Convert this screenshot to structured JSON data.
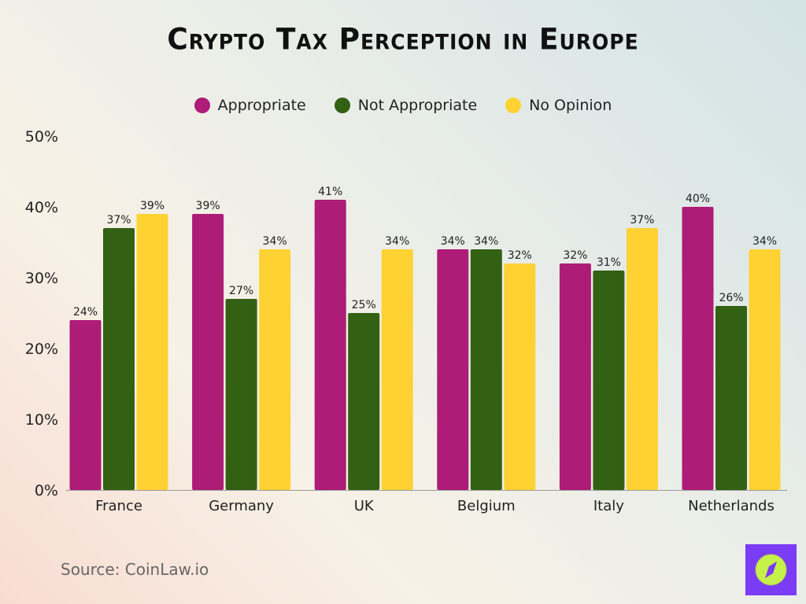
{
  "chart_data": {
    "type": "bar",
    "title": "Crypto Tax Perception in Europe",
    "categories": [
      "France",
      "Germany",
      "UK",
      "Belgium",
      "Italy",
      "Netherlands"
    ],
    "series": [
      {
        "name": "Appropriate",
        "color": "#ad1c77",
        "values": [
          24,
          39,
          41,
          34,
          32,
          40
        ]
      },
      {
        "name": "Not Appropriate",
        "color": "#336114",
        "values": [
          37,
          27,
          25,
          34,
          31,
          26
        ]
      },
      {
        "name": "No Opinion",
        "color": "#ffd233",
        "values": [
          39,
          34,
          34,
          32,
          37,
          34
        ]
      }
    ],
    "ylim": [
      0,
      50
    ],
    "yticks": [
      "0%",
      "10%",
      "20%",
      "30%",
      "40%",
      "50%"
    ],
    "value_suffix": "%",
    "grid": false,
    "legend": "top"
  },
  "source": "Source: CoinLaw.io",
  "logo": {
    "icon": "compass-icon",
    "colors": [
      "#7a3cf5",
      "#c6f04a"
    ]
  }
}
